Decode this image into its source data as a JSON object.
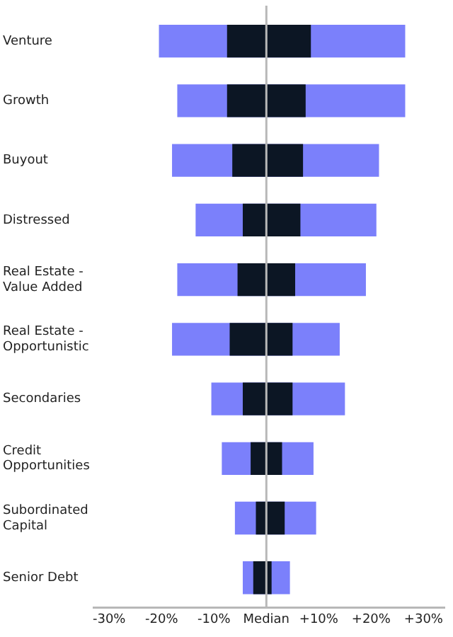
{
  "chart_data": {
    "type": "bar",
    "orientation": "horizontal",
    "categories": [
      "Venture",
      "Growth",
      "Buyout",
      "Distressed",
      "Real Estate - Value Added",
      "Real Estate - Opportunistic",
      "Secondaries",
      "Credit Opportunities",
      "Subordinated Capital",
      "Senior Debt"
    ],
    "series": [
      {
        "color": "#7b80fb",
        "base": [
          -20.5,
          -17,
          -18,
          -13.5,
          -17,
          -18,
          -10.5,
          -8.5,
          -6,
          -4.5
        ],
        "values": [
          47,
          43.5,
          39.5,
          34.5,
          36,
          32,
          25.5,
          17.5,
          15.5,
          9
        ]
      },
      {
        "color": "#0c1624",
        "base": [
          -7.5,
          -7.5,
          -6.5,
          -4.5,
          -5.5,
          -7,
          -4.5,
          -3,
          -2,
          -2.5
        ],
        "values": [
          16,
          15,
          13.5,
          11,
          11,
          12,
          9.5,
          6,
          5.5,
          3.5
        ]
      }
    ],
    "xlim": [
      -33,
      34
    ],
    "xticks": [
      {
        "value": -30,
        "label": "-30%"
      },
      {
        "value": -20,
        "label": "-20%"
      },
      {
        "value": -10,
        "label": "-10%"
      },
      {
        "value": 0,
        "label": "Median"
      },
      {
        "value": 10,
        "label": "+10%"
      },
      {
        "value": 20,
        "label": "+20%"
      },
      {
        "value": 30,
        "label": "+30%"
      }
    ],
    "ref_lines": [
      {
        "axis": "x",
        "value": 0,
        "color": "#b8b8b8"
      }
    ],
    "grid": false,
    "legend": false
  }
}
